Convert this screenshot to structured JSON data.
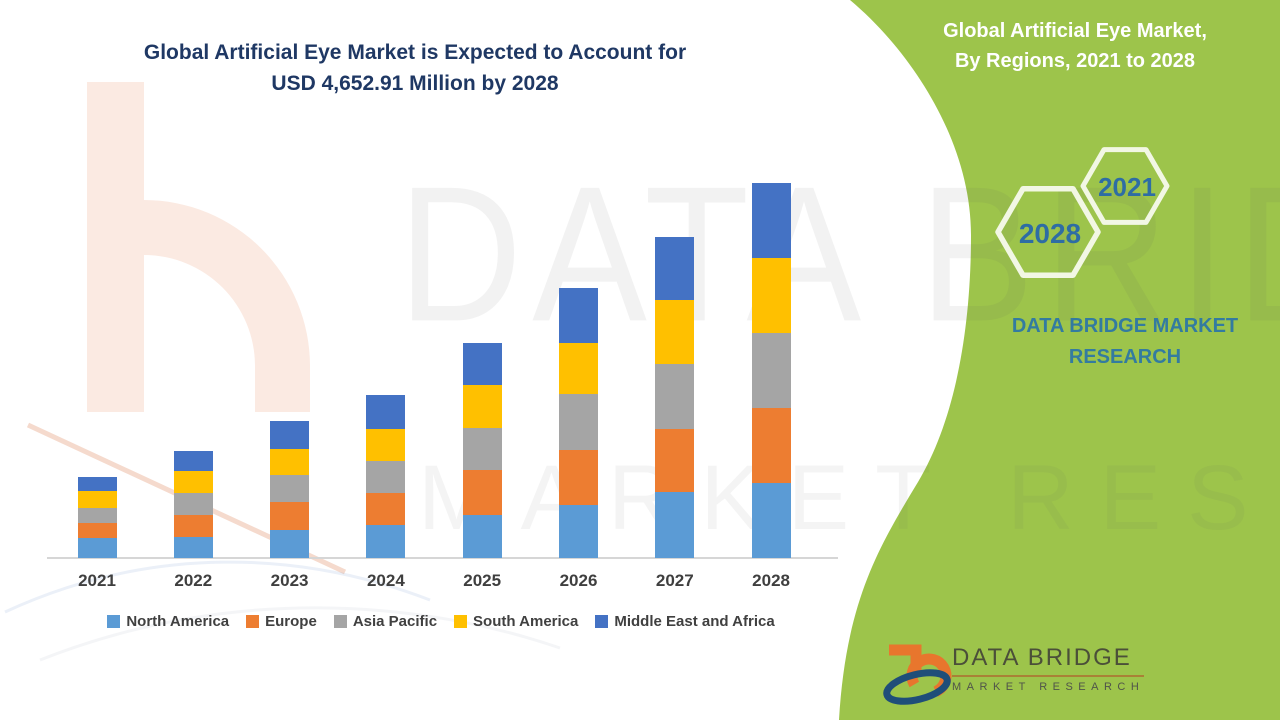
{
  "title": {
    "line1": "Global Artificial Eye Market is Expected to Account for",
    "line2": "USD 4,652.91 Million by 2028"
  },
  "side_panel": {
    "heading_line1": "Global Artificial Eye Market,",
    "heading_line2": "By Regions, 2021 to 2028",
    "hexagon_back_year": "2021",
    "hexagon_front_year": "2028",
    "brand_caption_line1": "DATA BRIDGE MARKET",
    "brand_caption_line2": "RESEARCH"
  },
  "footer_logo": {
    "brand": "DATA BRIDGE",
    "tagline": "MARKET RESEARCH"
  },
  "watermark": {
    "line1": "DATA BRIDGE",
    "line2": "MARKET RESEARCH"
  },
  "colors": {
    "panel_green": "#9dc44b",
    "title_navy": "#1f3864",
    "hexagon_year_text": "#2e6da4",
    "hexagon_stroke": "#f2f7e4",
    "brand_caption_teal": "#337ba0",
    "axis_label_gray": "#3f3f3f",
    "axis_line_gray": "#d6d6d6"
  },
  "chart_data": {
    "type": "bar",
    "stacked": true,
    "unit": "USD Million",
    "title": "Global Artificial Eye Market is Expected to Account for USD 4,652.91 Million by 2028",
    "categories": [
      "2021",
      "2022",
      "2023",
      "2024",
      "2025",
      "2026",
      "2027",
      "2028"
    ],
    "series": [
      {
        "name": "North America",
        "color": "#5b9bd5",
        "values": [
          245,
          255,
          345,
          415,
          535,
          660,
          825,
          930.59
        ]
      },
      {
        "name": "Europe",
        "color": "#ed7d31",
        "values": [
          185,
          275,
          345,
          395,
          560,
          685,
          780,
          930.58
        ]
      },
      {
        "name": "Asia Pacific",
        "color": "#a5a5a5",
        "values": [
          190,
          270,
          345,
          400,
          520,
          685,
          805,
          930.58
        ]
      },
      {
        "name": "South America",
        "color": "#ffc000",
        "values": [
          215,
          275,
          320,
          395,
          530,
          640,
          785,
          930.58
        ]
      },
      {
        "name": "Middle East and Africa",
        "color": "#4472c4",
        "values": [
          175,
          250,
          345,
          420,
          525,
          680,
          790,
          930.58
        ]
      }
    ],
    "highlight": {
      "year": "2028",
      "total_value": 4652.91,
      "total_label": "USD 4,652.91 Million"
    },
    "legend_position": "bottom",
    "y_axis_visible": false,
    "x_axis_line": true
  }
}
